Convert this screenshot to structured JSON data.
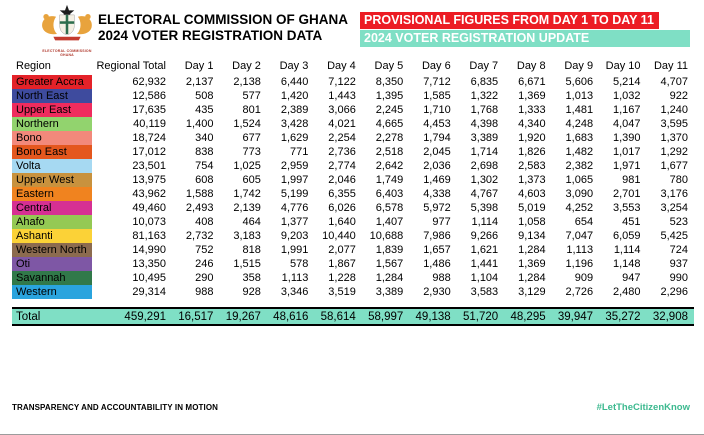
{
  "header": {
    "title_line1": "ELECTORAL COMMISSION OF GHANA",
    "title_line2": "2024 VOTER REGISTRATION DATA",
    "logo_caption_line1": "ELECTORAL COMMISSION",
    "logo_caption_line2": "GHANA",
    "banner_red": "PROVISIONAL FIGURES FROM DAY 1 TO DAY 11",
    "banner_teal": "2024 VOTER REGISTRATION UPDATE"
  },
  "colors": {
    "banner_red_bg": "#ec1c24",
    "banner_teal_bg": "#7fdfc5",
    "total_row_bg": "#7fdfc5",
    "hashtag_green": "#3cb98f"
  },
  "table": {
    "columns": [
      "Region",
      "Regional Total",
      "Day 1",
      "Day 2",
      "Day 3",
      "Day 4",
      "Day 5",
      "Day 6",
      "Day 7",
      "Day 8",
      "Day 9",
      "Day 10",
      "Day 11"
    ],
    "rows": [
      {
        "region": "Greater Accra",
        "color": "#e42229",
        "values": [
          "62,932",
          "2,137",
          "2,138",
          "6,440",
          "7,122",
          "8,350",
          "7,712",
          "6,835",
          "6,671",
          "5,606",
          "5,214",
          "4,707"
        ]
      },
      {
        "region": "North East",
        "color": "#3e4b9e",
        "values": [
          "12,586",
          "508",
          "577",
          "1,420",
          "1,443",
          "1,395",
          "1,585",
          "1,322",
          "1,369",
          "1,013",
          "1,032",
          "922"
        ]
      },
      {
        "region": "Upper East",
        "color": "#ef2c5e",
        "values": [
          "17,635",
          "435",
          "801",
          "2,389",
          "3,066",
          "2,245",
          "1,710",
          "1,768",
          "1,333",
          "1,481",
          "1,167",
          "1,240"
        ]
      },
      {
        "region": "Northern",
        "color": "#92d36e",
        "values": [
          "40,119",
          "1,400",
          "1,524",
          "3,428",
          "4,021",
          "4,665",
          "4,453",
          "4,398",
          "4,340",
          "4,248",
          "4,047",
          "3,595"
        ]
      },
      {
        "region": "Bono",
        "color": "#f2897b",
        "values": [
          "18,724",
          "340",
          "677",
          "1,629",
          "2,254",
          "2,278",
          "1,794",
          "3,389",
          "1,920",
          "1,683",
          "1,390",
          "1,370"
        ]
      },
      {
        "region": "Bono East",
        "color": "#e4571e",
        "values": [
          "17,012",
          "838",
          "773",
          "771",
          "2,736",
          "2,518",
          "2,045",
          "1,714",
          "1,826",
          "1,482",
          "1,017",
          "1,292"
        ]
      },
      {
        "region": "Volta",
        "color": "#a6d9f2",
        "values": [
          "23,501",
          "754",
          "1,025",
          "2,959",
          "2,774",
          "2,642",
          "2,036",
          "2,698",
          "2,583",
          "2,382",
          "1,971",
          "1,677"
        ]
      },
      {
        "region": "Upper West",
        "color": "#c8923e",
        "values": [
          "13,975",
          "608",
          "605",
          "1,997",
          "2,046",
          "1,749",
          "1,469",
          "1,302",
          "1,373",
          "1,065",
          "981",
          "780"
        ]
      },
      {
        "region": "Eastern",
        "color": "#f0831f",
        "values": [
          "43,962",
          "1,588",
          "1,742",
          "5,199",
          "6,355",
          "6,403",
          "4,338",
          "4,767",
          "4,603",
          "3,090",
          "2,701",
          "3,176"
        ]
      },
      {
        "region": "Central",
        "color": "#d63093",
        "values": [
          "49,460",
          "2,493",
          "2,139",
          "4,776",
          "6,026",
          "6,578",
          "5,972",
          "5,398",
          "5,019",
          "4,252",
          "3,553",
          "3,254"
        ]
      },
      {
        "region": "Ahafo",
        "color": "#94c954",
        "values": [
          "10,073",
          "408",
          "464",
          "1,377",
          "1,640",
          "1,407",
          "977",
          "1,114",
          "1,058",
          "654",
          "451",
          "523"
        ]
      },
      {
        "region": "Ashanti",
        "color": "#fbd237",
        "values": [
          "81,163",
          "2,732",
          "3,183",
          "9,203",
          "10,440",
          "10,688",
          "7,986",
          "9,266",
          "9,134",
          "7,047",
          "6,059",
          "5,425"
        ]
      },
      {
        "region": "Western North",
        "color": "#8c6b4f",
        "values": [
          "14,990",
          "752",
          "818",
          "1,991",
          "2,077",
          "1,839",
          "1,657",
          "1,621",
          "1,284",
          "1,113",
          "1,114",
          "724"
        ]
      },
      {
        "region": "Oti",
        "color": "#7e57a5",
        "values": [
          "13,350",
          "246",
          "1,515",
          "578",
          "1,867",
          "1,567",
          "1,486",
          "1,441",
          "1,369",
          "1,196",
          "1,148",
          "937"
        ]
      },
      {
        "region": "Savannah",
        "color": "#31794a",
        "values": [
          "10,495",
          "290",
          "358",
          "1,113",
          "1,228",
          "1,284",
          "988",
          "1,104",
          "1,284",
          "909",
          "947",
          "990"
        ]
      },
      {
        "region": "Western",
        "color": "#2aa4de",
        "values": [
          "29,314",
          "988",
          "928",
          "3,346",
          "3,519",
          "3,389",
          "2,930",
          "3,583",
          "3,129",
          "2,726",
          "2,480",
          "2,296"
        ]
      }
    ],
    "total": {
      "label": "Total",
      "values": [
        "459,291",
        "16,517",
        "19,267",
        "48,616",
        "58,614",
        "58,997",
        "49,138",
        "51,720",
        "48,295",
        "39,947",
        "35,272",
        "32,908"
      ]
    }
  },
  "footer": {
    "left": "TRANSPARENCY AND ACCOUNTABILITY IN MOTION",
    "right": "#LetTheCitizenKnow"
  }
}
